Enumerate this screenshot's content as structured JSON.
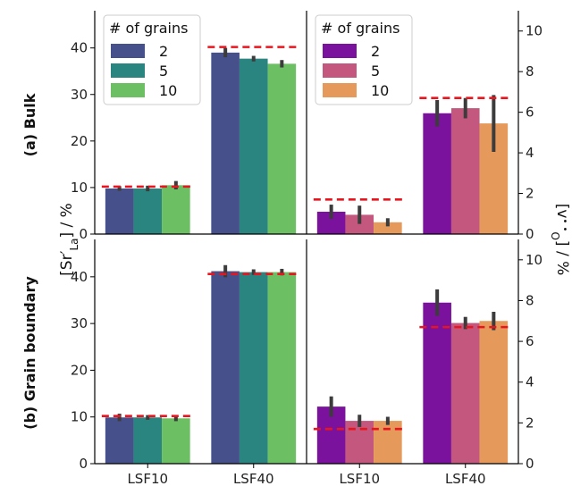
{
  "figure": {
    "row_titles": [
      "(a) Bulk",
      "(b) Grain boundary"
    ],
    "left_axis_label": {
      "base": "[Sr",
      "prime": "′",
      "sub": "La",
      "rest": "] / %"
    },
    "right_axis_label": {
      "base": "[v",
      "sup": "• •",
      "sub": "O",
      "rest": "] / %"
    }
  },
  "chart_data": [
    {
      "type": "bar",
      "row": "(a) Bulk",
      "side": "left",
      "legend_title": "# of grains",
      "legend_position": "top-left",
      "categories": [
        "LSF10",
        "LSF40"
      ],
      "series": [
        {
          "name": "2",
          "color": "#46508a",
          "values": [
            9.8,
            39.0
          ],
          "err": [
            0.5,
            1.0
          ]
        },
        {
          "name": "5",
          "color": "#2a8580",
          "values": [
            9.8,
            37.7
          ],
          "err": [
            0.6,
            0.6
          ]
        },
        {
          "name": "10",
          "color": "#6cc063",
          "values": [
            10.5,
            36.6
          ],
          "err": [
            0.9,
            0.8
          ]
        }
      ],
      "reference": [
        10.2,
        40.2
      ],
      "ylim": [
        0,
        48
      ],
      "yticks": [
        0,
        10,
        20,
        30,
        40
      ]
    },
    {
      "type": "bar",
      "row": "(a) Bulk",
      "side": "right",
      "legend_title": "# of grains",
      "legend_position": "top-left",
      "categories": [
        "LSF10",
        "LSF40"
      ],
      "series": [
        {
          "name": "2",
          "color": "#7a129e",
          "values": [
            1.1,
            5.95
          ],
          "err": [
            0.35,
            0.65
          ]
        },
        {
          "name": "5",
          "color": "#c3577d",
          "values": [
            0.95,
            6.2
          ],
          "err": [
            0.45,
            0.5
          ]
        },
        {
          "name": "10",
          "color": "#e5995a",
          "values": [
            0.58,
            5.45
          ],
          "err": [
            0.2,
            1.4
          ]
        }
      ],
      "reference": [
        1.7,
        6.7
      ],
      "ylim": [
        0,
        11
      ],
      "yticks": [
        0,
        2,
        4,
        6,
        8,
        10
      ]
    },
    {
      "type": "bar",
      "row": "(b) Grain boundary",
      "side": "left",
      "legend_title": "",
      "categories": [
        "LSF10",
        "LSF40"
      ],
      "series": [
        {
          "name": "2",
          "color": "#46508a",
          "values": [
            9.9,
            41.2
          ],
          "err": [
            0.8,
            1.3
          ]
        },
        {
          "name": "5",
          "color": "#2a8580",
          "values": [
            9.9,
            41.0
          ],
          "err": [
            0.5,
            0.6
          ]
        },
        {
          "name": "10",
          "color": "#6cc063",
          "values": [
            9.7,
            41.0
          ],
          "err": [
            0.6,
            0.7
          ]
        }
      ],
      "reference": [
        10.2,
        40.6
      ],
      "ylim": [
        0,
        48
      ],
      "yticks": [
        0,
        10,
        20,
        30,
        40
      ]
    },
    {
      "type": "bar",
      "row": "(b) Grain boundary",
      "side": "right",
      "legend_title": "",
      "categories": [
        "LSF10",
        "LSF40"
      ],
      "series": [
        {
          "name": "2",
          "color": "#7a129e",
          "values": [
            2.8,
            7.9
          ],
          "err": [
            0.5,
            0.65
          ]
        },
        {
          "name": "5",
          "color": "#c3577d",
          "values": [
            2.1,
            6.9
          ],
          "err": [
            0.3,
            0.3
          ]
        },
        {
          "name": "10",
          "color": "#e5995a",
          "values": [
            2.1,
            7.0
          ],
          "err": [
            0.2,
            0.45
          ]
        }
      ],
      "reference": [
        1.7,
        6.7
      ],
      "ylim": [
        0,
        11
      ],
      "yticks": [
        0,
        2,
        4,
        6,
        8,
        10
      ]
    }
  ],
  "colors": {
    "reference_line": "#e8141e",
    "error_bar": "#3c3c3c",
    "axis": "#000000"
  }
}
